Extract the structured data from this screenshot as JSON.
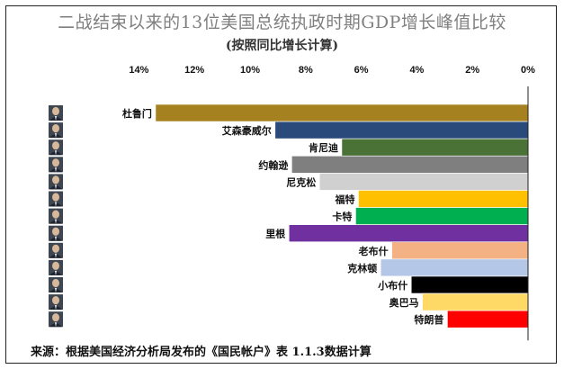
{
  "header": {
    "title": "二战结束以来的13位美国总统执政时期GDP增长峰值比较",
    "subtitle": "(按照同比增长计算)"
  },
  "footer": {
    "source": "来源：根据美国经济分析局发布的《国民帐户》表 1.1.3数据计算"
  },
  "chart_data": {
    "type": "bar",
    "orientation": "horizontal",
    "x_axis": "reversed",
    "title": "二战结束以来的13位美国总统执政时期GDP增长峰值比较",
    "subtitle": "(按照同比增长计算)",
    "xlim": [
      0,
      14
    ],
    "ticks": [
      14,
      12,
      10,
      8,
      6,
      4,
      2,
      0
    ],
    "tick_labels": [
      "14%",
      "12%",
      "10%",
      "8%",
      "6%",
      "4%",
      "2%",
      "0%"
    ],
    "grid": false,
    "legend": "none",
    "categories": [
      "杜鲁门",
      "艾森豪威尔",
      "肯尼迪",
      "约翰逊",
      "尼克松",
      "福特",
      "卡特",
      "里根",
      "老布什",
      "克林顿",
      "小布什",
      "奥巴马",
      "特朗普"
    ],
    "values": [
      13.4,
      9.1,
      6.7,
      8.5,
      7.5,
      6.1,
      6.2,
      8.6,
      4.9,
      5.3,
      4.2,
      3.8,
      2.9
    ],
    "colors": [
      "#a5821f",
      "#2a4a7b",
      "#4a7136",
      "#7f7f7f",
      "#d0d0d0",
      "#ffc000",
      "#00b050",
      "#7030a0",
      "#f4b183",
      "#b4c7e7",
      "#000000",
      "#ffd966",
      "#ff0000"
    ]
  },
  "icons": {
    "portrait_column": "president-portrait-icon"
  }
}
